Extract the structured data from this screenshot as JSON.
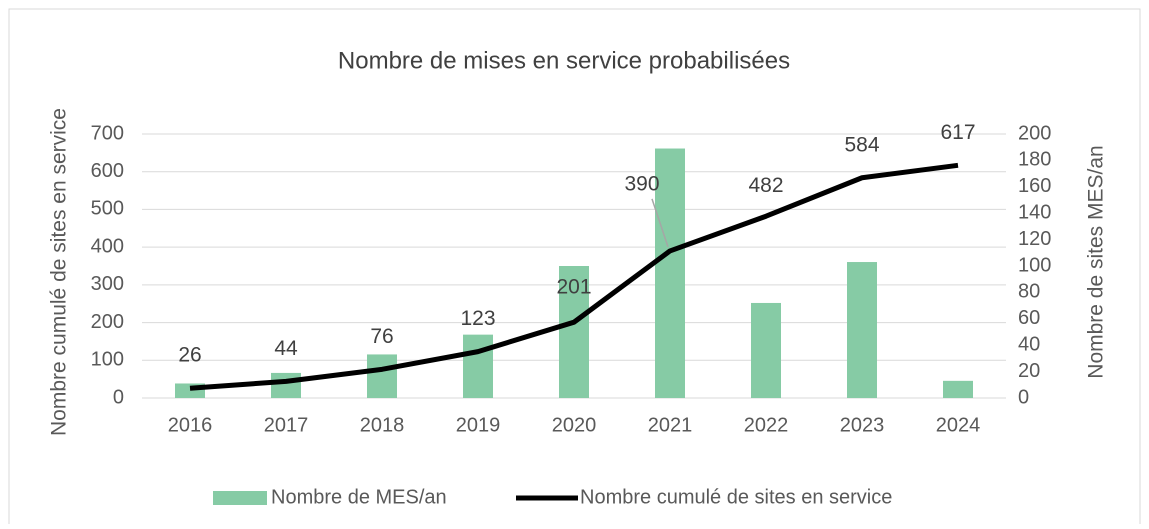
{
  "chart_data": {
    "type": "bar-line",
    "title": "Nombre de mises en service probabilisées",
    "ylabel": "Nombre cumulé de sites en service",
    "y2label": "Nombre de sites MES/an",
    "categories": [
      "2016",
      "2017",
      "2018",
      "2019",
      "2020",
      "2021",
      "2022",
      "2023",
      "2024"
    ],
    "series": [
      {
        "name": "Nombre de MES/an",
        "type": "bar",
        "axis": "y2",
        "color": "#86cba5",
        "values": [
          11,
          19,
          33,
          48,
          100,
          189,
          72,
          103,
          13
        ]
      },
      {
        "name": "Nombre cumulé de sites en service",
        "type": "line",
        "axis": "y",
        "color": "#000000",
        "values": [
          26,
          44,
          76,
          123,
          201,
          390,
          482,
          584,
          617
        ]
      }
    ],
    "ylim": [
      0,
      700
    ],
    "yticks": [
      0,
      100,
      200,
      300,
      400,
      500,
      600,
      700
    ],
    "y2lim": [
      0,
      200
    ],
    "y2ticks": [
      0,
      20,
      40,
      60,
      80,
      100,
      120,
      140,
      160,
      180,
      200
    ],
    "grid": true,
    "legend": "bottom"
  }
}
